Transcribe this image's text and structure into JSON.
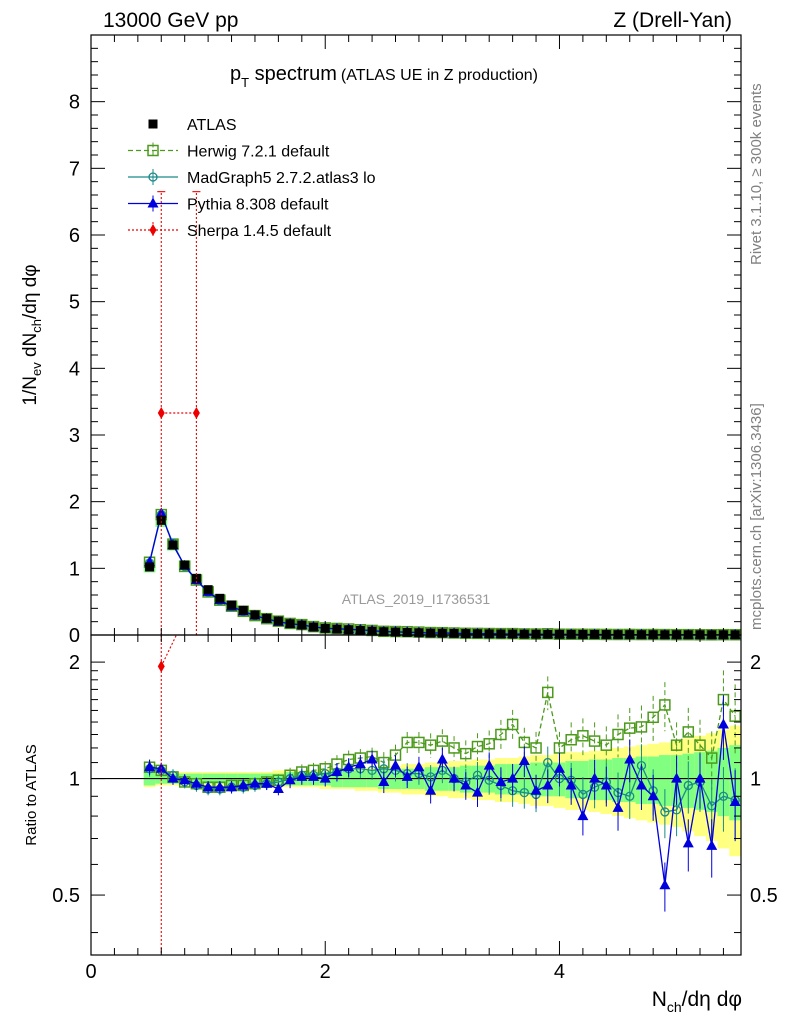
{
  "header": {
    "left": "13000 GeV pp",
    "right": "Z (Drell-Yan)"
  },
  "side": {
    "rivet": "Rivet 3.1.10, ≥ 300k events",
    "mcplots": "mcplots.cern.ch [arXiv:1306.3436]"
  },
  "colors": {
    "atlas": "#000000",
    "herwig": "#4c9a1c",
    "madgraph": "#1a8a8a",
    "pythia": "#0000dd",
    "sherpa": "#ee0000",
    "band_yellow": "#ffff80",
    "band_green": "#80ff80"
  },
  "chart_data": {
    "type": "line",
    "title_main": "p",
    "title_sub": "T",
    "title_rest": " spectrum",
    "title_note": "(ATLAS UE in Z production)",
    "analysis_id": "ATLAS_2019_I1736531",
    "xlabel": {
      "a": "N",
      "b": "ch",
      "c": "/dη dφ"
    },
    "ylabel": {
      "a": "1/N",
      "b": "ev",
      "c": " dN",
      "d": "ch",
      "e": "/dη dφ"
    },
    "ratio_ylabel": "Ratio to ATLAS",
    "xlim": [
      0,
      5.55
    ],
    "ylim": [
      0,
      9.0
    ],
    "ratio_ylim": [
      0.35,
      2.35
    ],
    "x_ticks": [
      "0",
      "2",
      "4"
    ],
    "x_tick_values": [
      0,
      2,
      4
    ],
    "y_ticks": [
      "0",
      "1",
      "2",
      "3",
      "4",
      "5",
      "6",
      "7",
      "8"
    ],
    "y_tick_values": [
      0,
      1,
      2,
      3,
      4,
      5,
      6,
      7,
      8
    ],
    "ratio_ticks": [
      "0.5",
      "1",
      "2"
    ],
    "ratio_tick_values": [
      0.5,
      1,
      2
    ],
    "x": [
      0.5,
      0.6,
      0.7,
      0.8,
      0.9,
      1.0,
      1.1,
      1.2,
      1.3,
      1.4,
      1.5,
      1.6,
      1.7,
      1.8,
      1.9,
      2.0,
      2.1,
      2.2,
      2.3,
      2.4,
      2.5,
      2.6,
      2.7,
      2.8,
      2.9,
      3.0,
      3.1,
      3.2,
      3.3,
      3.4,
      3.5,
      3.6,
      3.7,
      3.8,
      3.9,
      4.0,
      4.1,
      4.2,
      4.3,
      4.4,
      4.5,
      4.6,
      4.7,
      4.8,
      4.9,
      5.0,
      5.1,
      5.2,
      5.3,
      5.4,
      5.5
    ],
    "atlas": [
      1.02,
      1.72,
      1.35,
      1.05,
      0.85,
      0.68,
      0.55,
      0.45,
      0.37,
      0.3,
      0.25,
      0.21,
      0.17,
      0.15,
      0.12,
      0.1,
      0.09,
      0.08,
      0.07,
      0.06,
      0.05,
      0.045,
      0.04,
      0.035,
      0.03,
      0.028,
      0.025,
      0.022,
      0.02,
      0.018,
      0.016,
      0.015,
      0.013,
      0.012,
      0.011,
      0.01,
      0.009,
      0.008,
      0.008,
      0.007,
      0.006,
      0.006,
      0.005,
      0.005,
      0.004,
      0.004,
      0.004,
      0.003,
      0.003,
      0.003,
      0.003
    ],
    "legend": [
      "ATLAS",
      "Herwig 7.2.1 default",
      "MadGraph5 2.7.2.atlas3 lo",
      "Pythia 8.308 default",
      "Sherpa 1.4.5 default"
    ],
    "series": [
      {
        "name": "Herwig 7.2.1 default",
        "ratio": [
          1.07,
          1.05,
          1.01,
          0.98,
          0.97,
          0.95,
          0.95,
          0.96,
          0.96,
          0.97,
          0.98,
          0.99,
          1.02,
          1.04,
          1.05,
          1.06,
          1.09,
          1.12,
          1.13,
          1.14,
          1.1,
          1.15,
          1.24,
          1.24,
          1.22,
          1.25,
          1.2,
          1.16,
          1.21,
          1.23,
          1.3,
          1.38,
          1.24,
          1.2,
          1.67,
          1.2,
          1.26,
          1.29,
          1.25,
          1.22,
          1.3,
          1.35,
          1.36,
          1.44,
          1.55,
          1.22,
          1.32,
          1.22,
          1.13,
          1.6,
          1.45
        ]
      },
      {
        "name": "MadGraph5 2.7.2.atlas3 lo",
        "ratio": [
          1.06,
          1.05,
          1.02,
          0.98,
          0.96,
          0.94,
          0.94,
          0.95,
          0.95,
          0.96,
          0.97,
          0.98,
          1.0,
          1.02,
          1.02,
          1.03,
          1.04,
          1.06,
          1.06,
          1.05,
          1.06,
          1.05,
          1.03,
          1.03,
          1.01,
          1.05,
          1.0,
          0.98,
          1.02,
          0.99,
          0.96,
          0.93,
          0.92,
          0.91,
          1.1,
          1.0,
          0.99,
          0.91,
          0.95,
          0.98,
          0.92,
          0.9,
          1.08,
          0.93,
          0.82,
          0.83,
          0.96,
          0.98,
          0.85,
          0.9,
          0.88
        ]
      },
      {
        "name": "Pythia 8.308 default",
        "ratio": [
          1.07,
          1.06,
          1.0,
          0.99,
          0.97,
          0.95,
          0.95,
          0.95,
          0.96,
          0.97,
          0.97,
          0.94,
          0.99,
          1.01,
          1.01,
          1.0,
          1.04,
          1.07,
          1.09,
          1.12,
          0.98,
          1.08,
          1.01,
          1.07,
          0.93,
          1.12,
          1.0,
          0.96,
          0.92,
          1.08,
          0.98,
          1.0,
          1.11,
          0.93,
          0.96,
          1.06,
          0.96,
          0.8,
          1.0,
          0.96,
          0.84,
          1.12,
          0.96,
          0.9,
          0.53,
          1.0,
          0.68,
          1.0,
          0.67,
          1.38,
          0.87
        ]
      },
      {
        "name": "Sherpa 1.4.5 default",
        "points": [
          {
            "x": 0.6,
            "y": 3.33
          },
          {
            "x": 0.9,
            "y": 3.33
          }
        ],
        "ratio_points": [
          {
            "x": 0.6,
            "ratio": 1.95
          }
        ],
        "err_hi": 6.65
      }
    ],
    "band_green": [
      0.04,
      0.03,
      0.03,
      0.03,
      0.03,
      0.03,
      0.03,
      0.03,
      0.03,
      0.03,
      0.03,
      0.03,
      0.04,
      0.04,
      0.04,
      0.04,
      0.05,
      0.05,
      0.05,
      0.05,
      0.06,
      0.06,
      0.06,
      0.06,
      0.07,
      0.07,
      0.07,
      0.08,
      0.08,
      0.08,
      0.09,
      0.09,
      0.09,
      0.1,
      0.1,
      0.1,
      0.11,
      0.11,
      0.12,
      0.12,
      0.13,
      0.13,
      0.14,
      0.14,
      0.15,
      0.15,
      0.16,
      0.17,
      0.18,
      0.2,
      0.22
    ],
    "band_yellow": [
      0.05,
      0.04,
      0.04,
      0.04,
      0.04,
      0.04,
      0.04,
      0.04,
      0.04,
      0.04,
      0.04,
      0.05,
      0.05,
      0.05,
      0.05,
      0.06,
      0.06,
      0.06,
      0.07,
      0.07,
      0.08,
      0.08,
      0.09,
      0.09,
      0.1,
      0.1,
      0.11,
      0.11,
      0.12,
      0.12,
      0.13,
      0.13,
      0.14,
      0.15,
      0.15,
      0.16,
      0.17,
      0.17,
      0.18,
      0.19,
      0.2,
      0.21,
      0.22,
      0.23,
      0.24,
      0.25,
      0.27,
      0.29,
      0.31,
      0.34,
      0.37
    ]
  }
}
